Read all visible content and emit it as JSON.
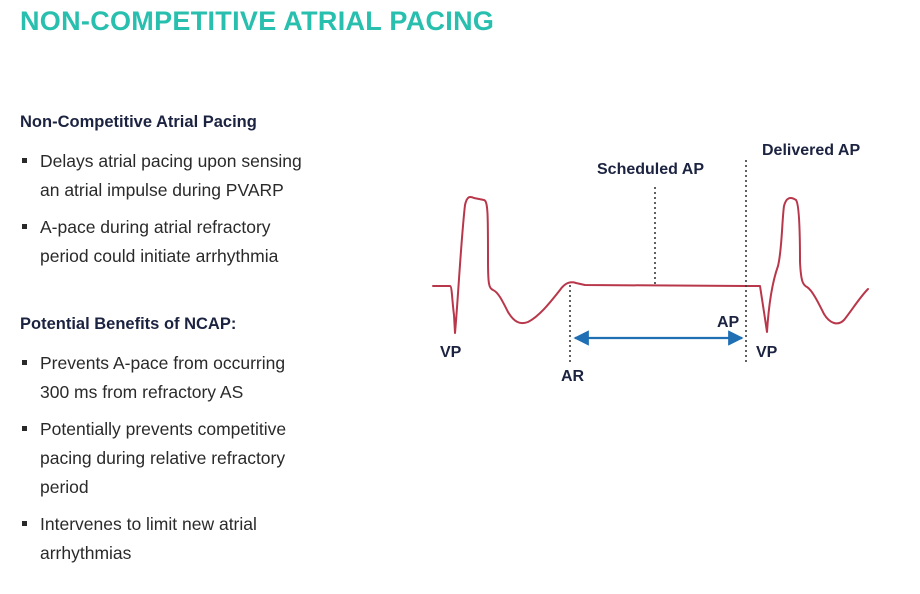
{
  "colors": {
    "title": "#28bfae",
    "heading": "#1c2340",
    "ecg_trace": "#b8374a",
    "interval_arrow": "#1f6fb5",
    "dotted_line": "#3a3a3a"
  },
  "title": "NON-COMPETITIVE ATRIAL PACING",
  "section1": {
    "heading": "Non-Competitive Atrial Pacing",
    "bullets": [
      [
        "Delays atrial pacing upon sensing",
        "an atrial impulse during PVARP"
      ],
      [
        "A-pace during atrial refractory",
        "period could initiate arrhythmia"
      ]
    ]
  },
  "section2": {
    "heading": "Potential Benefits of NCAP:",
    "bullets": [
      [
        "Prevents A-pace from occurring",
        "300 ms  from refractory AS"
      ],
      [
        "Potentially prevents competitive",
        "pacing during relative refractory",
        "period"
      ],
      [
        "Intervenes to limit new atrial",
        "arrhythmias"
      ]
    ]
  },
  "diagram": {
    "scheduled_ap": "Scheduled AP",
    "delivered_ap": "Delivered AP",
    "vp_left": "VP",
    "vp_right": "VP",
    "ar": "AR",
    "ap": "AP"
  }
}
